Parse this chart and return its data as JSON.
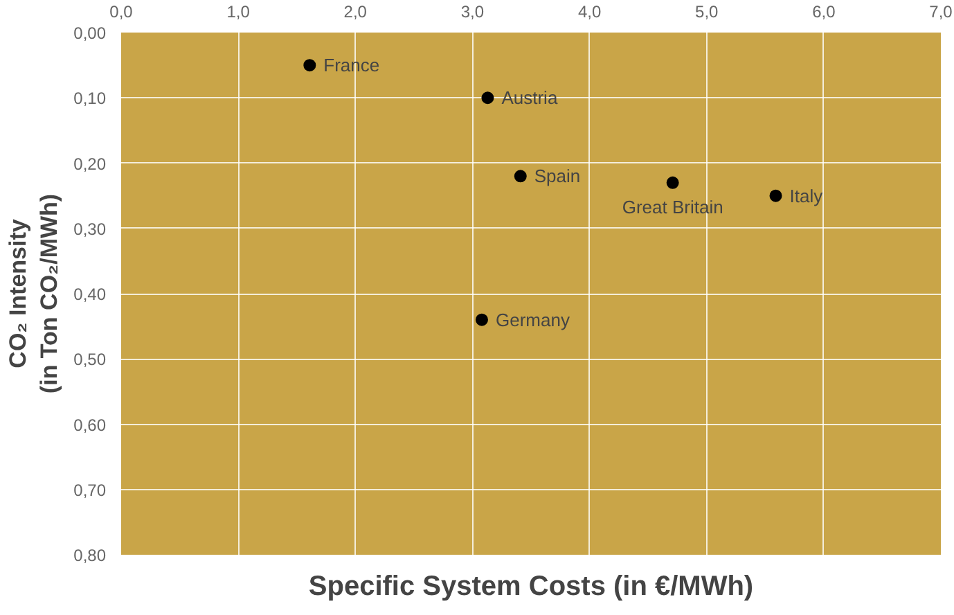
{
  "chart_data": {
    "type": "scatter",
    "xlabel": "Specific System Costs (in €/MWh)",
    "ylabel": "CO₂ Intensity\n(in Ton CO₂/MWh)",
    "x": [
      1.61,
      3.13,
      3.41,
      4.71,
      5.59,
      3.08
    ],
    "values": [
      0.05,
      0.1,
      0.22,
      0.23,
      0.25,
      0.44
    ],
    "color": "#000000",
    "marker": "circle",
    "grid": true,
    "xlim": [
      0,
      7
    ],
    "xticks": [
      {
        "value": 0,
        "label": "0,0"
      },
      {
        "value": 1,
        "label": "1,0"
      },
      {
        "value": 2,
        "label": "2,0"
      },
      {
        "value": 3,
        "label": "3,0"
      },
      {
        "value": 4,
        "label": "4,0"
      },
      {
        "value": 5,
        "label": "5,0"
      },
      {
        "value": 6,
        "label": "6,0"
      },
      {
        "value": 7,
        "label": "7,0"
      }
    ],
    "ylim": [
      0.8,
      0
    ],
    "yticks": [
      {
        "value": 0,
        "label": "0,00"
      },
      {
        "value": 0.1,
        "label": "0,10"
      },
      {
        "value": 0.2,
        "label": "0,20"
      },
      {
        "value": 0.3,
        "label": "0,30"
      },
      {
        "value": 0.4,
        "label": "0,40"
      },
      {
        "value": 0.5,
        "label": "0,50"
      },
      {
        "value": 0.6,
        "label": "0,60"
      },
      {
        "value": 0.7,
        "label": "0,70"
      },
      {
        "value": 0.8,
        "label": "0,80"
      }
    ],
    "annotations": [
      {
        "text": "France",
        "x": 1.61,
        "y": 0.05
      },
      {
        "text": "Austria",
        "x": 3.13,
        "y": 0.1
      },
      {
        "text": "Spain",
        "x": 3.41,
        "y": 0.22
      },
      {
        "text": "Great Britain",
        "x": 4.71,
        "y": 0.23
      },
      {
        "text": "Italy",
        "x": 5.59,
        "y": 0.25
      },
      {
        "text": "Germany",
        "x": 3.08,
        "y": 0.44
      }
    ]
  }
}
